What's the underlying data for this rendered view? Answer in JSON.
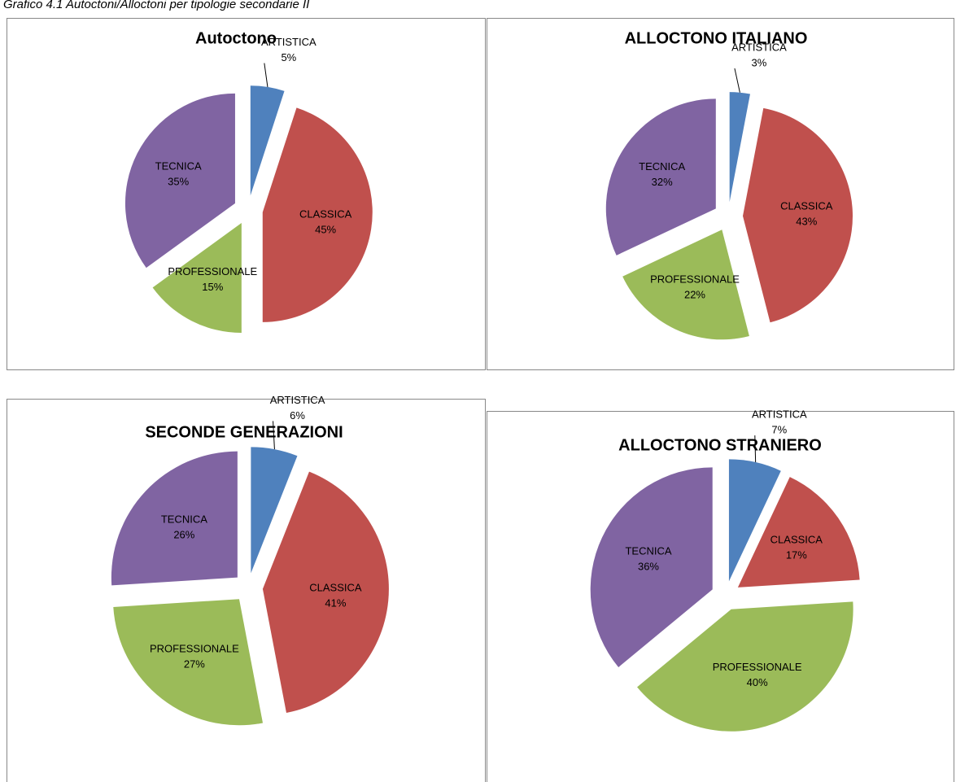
{
  "caption": "Grafico 4.1 Autoctoni/Alloctoni per tipologie secondarie II",
  "chart_data": [
    {
      "type": "pie",
      "title": "Autoctono",
      "categories": [
        "ARTISTICA",
        "CLASSICA",
        "PROFESSIONALE",
        "TECNICA"
      ],
      "values": [
        5,
        45,
        15,
        35
      ],
      "value_labels": [
        "5%",
        "45%",
        "15%",
        "35%"
      ],
      "colors": [
        "#4f81bd",
        "#c0504d",
        "#9bbb59",
        "#8064a2"
      ]
    },
    {
      "type": "pie",
      "title": "ALLOCTONO ITALIANO",
      "categories": [
        "ARTISTICA",
        "CLASSICA",
        "PROFESSIONALE",
        "TECNICA"
      ],
      "values": [
        3,
        43,
        22,
        32
      ],
      "value_labels": [
        "3%",
        "43%",
        "22%",
        "32%"
      ],
      "colors": [
        "#4f81bd",
        "#c0504d",
        "#9bbb59",
        "#8064a2"
      ]
    },
    {
      "type": "pie",
      "title": "SECONDE GENERAZIONI",
      "categories": [
        "ARTISTICA",
        "CLASSICA",
        "PROFESSIONALE",
        "TECNICA"
      ],
      "values": [
        6,
        41,
        27,
        26
      ],
      "value_labels": [
        "6%",
        "41%",
        "27%",
        "26%"
      ],
      "colors": [
        "#4f81bd",
        "#c0504d",
        "#9bbb59",
        "#8064a2"
      ]
    },
    {
      "type": "pie",
      "title": "ALLOCTONO STRANIERO",
      "categories": [
        "ARTISTICA",
        "CLASSICA",
        "PROFESSIONALE",
        "TECNICA"
      ],
      "values": [
        7,
        17,
        40,
        36
      ],
      "value_labels": [
        "7%",
        "17%",
        "40%",
        "36%"
      ],
      "colors": [
        "#4f81bd",
        "#c0504d",
        "#9bbb59",
        "#8064a2"
      ]
    }
  ]
}
